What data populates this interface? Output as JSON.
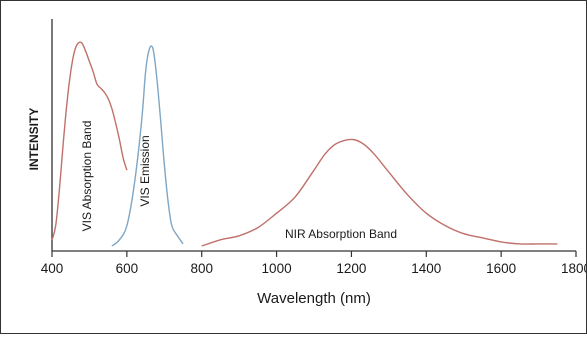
{
  "chart_data": {
    "type": "line",
    "title": "",
    "xlabel": "Wavelength (nm)",
    "ylabel": "INTENSITY",
    "xlim": [
      400,
      1800
    ],
    "ylim": [
      0,
      1
    ],
    "x_ticks": [
      400,
      600,
      800,
      1000,
      1200,
      1400,
      1600,
      1800
    ],
    "x_tick_labels": [
      "400",
      "600",
      "800",
      "1000",
      "1200",
      "1400",
      "1600",
      "1800"
    ],
    "grid": false,
    "legend": "none",
    "series": [
      {
        "name": "VIS Absorption Band",
        "color": "#c0706a",
        "points": [
          [
            400,
            0.03
          ],
          [
            410,
            0.1
          ],
          [
            420,
            0.28
          ],
          [
            430,
            0.5
          ],
          [
            440,
            0.7
          ],
          [
            450,
            0.85
          ],
          [
            460,
            0.95
          ],
          [
            470,
            0.99
          ],
          [
            480,
            0.99
          ],
          [
            490,
            0.95
          ],
          [
            500,
            0.9
          ],
          [
            510,
            0.85
          ],
          [
            520,
            0.79
          ],
          [
            530,
            0.77
          ],
          [
            540,
            0.75
          ],
          [
            550,
            0.72
          ],
          [
            560,
            0.67
          ],
          [
            570,
            0.6
          ],
          [
            580,
            0.52
          ],
          [
            590,
            0.43
          ],
          [
            600,
            0.37
          ]
        ]
      },
      {
        "name": "VIS Emission",
        "color": "#7fa6c4",
        "points": [
          [
            560,
            0.0
          ],
          [
            580,
            0.03
          ],
          [
            600,
            0.1
          ],
          [
            620,
            0.3
          ],
          [
            640,
            0.62
          ],
          [
            650,
            0.85
          ],
          [
            660,
            0.96
          ],
          [
            670,
            0.96
          ],
          [
            680,
            0.82
          ],
          [
            690,
            0.62
          ],
          [
            700,
            0.4
          ],
          [
            710,
            0.22
          ],
          [
            720,
            0.1
          ],
          [
            735,
            0.05
          ],
          [
            750,
            0.01
          ]
        ]
      },
      {
        "name": "NIR Absorption Band",
        "color": "#c0706a",
        "points": [
          [
            800,
            0.0
          ],
          [
            850,
            0.03
          ],
          [
            900,
            0.05
          ],
          [
            950,
            0.09
          ],
          [
            1000,
            0.16
          ],
          [
            1050,
            0.24
          ],
          [
            1100,
            0.37
          ],
          [
            1130,
            0.45
          ],
          [
            1160,
            0.5
          ],
          [
            1200,
            0.52
          ],
          [
            1230,
            0.5
          ],
          [
            1260,
            0.45
          ],
          [
            1300,
            0.36
          ],
          [
            1350,
            0.25
          ],
          [
            1400,
            0.16
          ],
          [
            1450,
            0.1
          ],
          [
            1500,
            0.06
          ],
          [
            1550,
            0.04
          ],
          [
            1600,
            0.02
          ],
          [
            1650,
            0.01
          ],
          [
            1700,
            0.01
          ],
          [
            1750,
            0.01
          ]
        ]
      }
    ],
    "annotations": [
      {
        "text": "VIS Absorption Band",
        "series": "VIS Absorption Band"
      },
      {
        "text": "VIS Emission",
        "series": "VIS Emission"
      },
      {
        "text": "NIR Absorption Band",
        "series": "NIR Absorption Band"
      }
    ]
  }
}
